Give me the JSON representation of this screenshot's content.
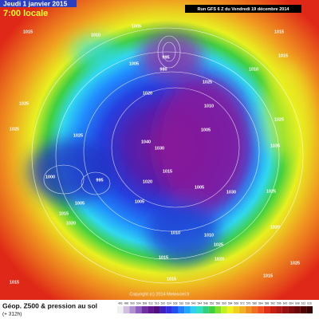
{
  "header": {
    "date": "Jeudi 1 janvier 2015",
    "time": "7:00 locale",
    "run": "Run GFS 6 Z du Vendredi 19 décembre 2014"
  },
  "footer": {
    "title": "Géop. Z500 & pression au sol",
    "lead": "(+ 312h)",
    "copyright": "Copyright (c) 2014 Meteociel.fr"
  },
  "colorbar": {
    "labels": [
      492,
      496,
      500,
      504,
      508,
      512,
      516,
      520,
      524,
      528,
      532,
      536,
      540,
      544,
      548,
      552,
      556,
      560,
      564,
      568,
      572,
      576,
      580,
      584,
      588,
      592,
      596,
      600,
      604,
      608,
      612,
      616
    ]
  },
  "isobar_labels": [
    "1015",
    "1010",
    "1005",
    "995",
    "980",
    "1010",
    "1015",
    "1015",
    "1025",
    "1010",
    "1020",
    "1005",
    "1025",
    "1025",
    "1040",
    "1030",
    "1005",
    "1035",
    "1025",
    "1000",
    "995",
    "1015",
    "1020",
    "1005",
    "1030",
    "1005",
    "1015",
    "1005",
    "1010",
    "1010",
    "1015",
    "1025",
    "1020",
    "1025",
    "1020",
    "1025",
    "1015",
    "1020",
    "1015",
    "1015",
    "1025"
  ]
}
